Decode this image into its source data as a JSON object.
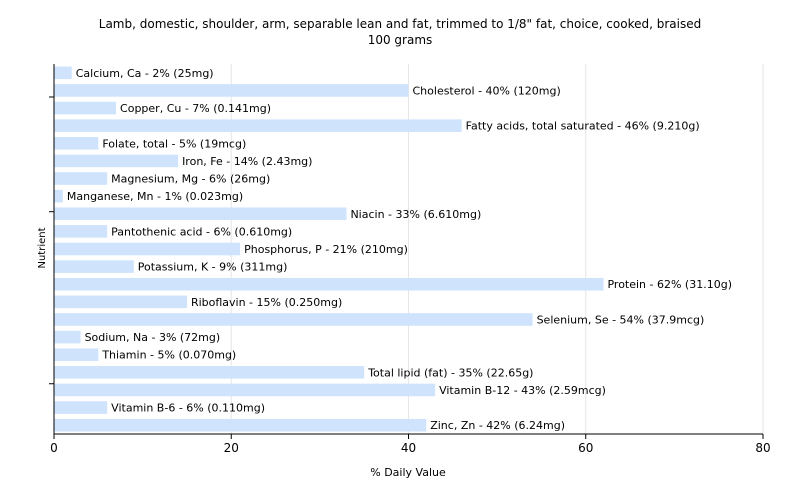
{
  "chart_data": {
    "type": "bar",
    "orientation": "horizontal",
    "title": "Lamb, domestic, shoulder, arm, separable lean and fat, trimmed to 1/8\" fat, choice, cooked, braised",
    "subtitle": "100 grams",
    "xlabel": "% Daily Value",
    "ylabel": "Nutrient",
    "xlim": [
      0,
      80
    ],
    "xticks": [
      0,
      20,
      40,
      60,
      80
    ],
    "grid": true,
    "bar_color": "#cfe3fc",
    "categories": [
      "Calcium, Ca",
      "Cholesterol",
      "Copper, Cu",
      "Fatty acids, total saturated",
      "Folate, total",
      "Iron, Fe",
      "Magnesium, Mg",
      "Manganese, Mn",
      "Niacin",
      "Pantothenic acid",
      "Phosphorus, P",
      "Potassium, K",
      "Protein",
      "Riboflavin",
      "Selenium, Se",
      "Sodium, Na",
      "Thiamin",
      "Total lipid (fat)",
      "Vitamin B-12",
      "Vitamin B-6",
      "Zinc, Zn"
    ],
    "values": [
      2,
      40,
      7,
      46,
      5,
      14,
      6,
      1,
      33,
      6,
      21,
      9,
      62,
      15,
      54,
      3,
      5,
      35,
      43,
      6,
      42
    ],
    "labels": [
      "Calcium, Ca - 2% (25mg)",
      "Cholesterol - 40% (120mg)",
      "Copper, Cu - 7% (0.141mg)",
      "Fatty acids, total saturated - 46% (9.210g)",
      "Folate, total - 5% (19mcg)",
      "Iron, Fe - 14% (2.43mg)",
      "Magnesium, Mg - 6% (26mg)",
      "Manganese, Mn - 1% (0.023mg)",
      "Niacin - 33% (6.610mg)",
      "Pantothenic acid - 6% (0.610mg)",
      "Phosphorus, P - 21% (210mg)",
      "Potassium, K - 9% (311mg)",
      "Protein - 62% (31.10g)",
      "Riboflavin - 15% (0.250mg)",
      "Selenium, Se - 54% (37.9mcg)",
      "Sodium, Na - 3% (72mg)",
      "Thiamin - 5% (0.070mg)",
      "Total lipid (fat) - 35% (22.65g)",
      "Vitamin B-12 - 43% (2.59mcg)",
      "Vitamin B-6 - 6% (0.110mg)",
      "Zinc, Zn - 42% (6.24mg)"
    ]
  }
}
